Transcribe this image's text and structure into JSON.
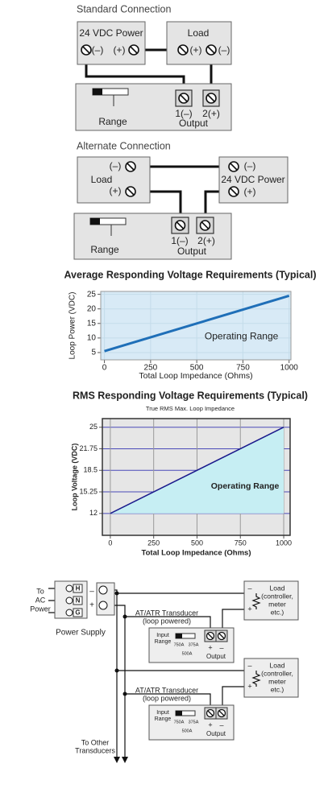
{
  "standard_connection": {
    "title": "Standard Connection",
    "power": {
      "label": "24 VDC Power",
      "minus": "(–)",
      "plus": "(+)"
    },
    "load": {
      "label": "Load",
      "plus": "(+)",
      "minus": "(–)"
    },
    "device": {
      "range": "Range",
      "terminal_1": "1(–)",
      "terminal_2": "2(+)",
      "output": "Output"
    }
  },
  "alternate_connection": {
    "title": "Alternate Connection",
    "load": {
      "label": "Load",
      "minus": "(–)",
      "plus": "(+)"
    },
    "power": {
      "label": "24 VDC Power",
      "minus": "(–)",
      "plus": "(+)"
    },
    "device": {
      "range": "Range",
      "terminal_1": "1(–)",
      "terminal_2": "2(+)",
      "output": "Output"
    }
  },
  "chart_data": [
    {
      "type": "line",
      "title": "Average Responding Voltage Requirements (Typical)",
      "x_label": "Total Loop Impedance (Ohms)",
      "y_label": "Loop Power (VDC)",
      "annotation": "Operating Range",
      "x": [
        0,
        1000
      ],
      "series": [
        {
          "color": "#1f6fb8",
          "values": [
            5.5,
            24.5
          ]
        }
      ],
      "xlim": [
        -20,
        1010
      ],
      "xticks": [
        0,
        250,
        500,
        750,
        1000
      ],
      "ylim": [
        2.5,
        26
      ],
      "yticks": [
        5,
        10,
        15,
        20,
        25
      ],
      "grid": true,
      "grid_color": "#c4dcea",
      "plot_background": "#d8eaf6"
    },
    {
      "type": "line",
      "title": "RMS Responding Voltage Requirements (Typical)",
      "subtitle": "True RMS Max. Loop Impedance",
      "x_label": "Total Loop Impedance (Ohms)",
      "y_label": "Loop Voltage (VDC)",
      "annotation": "Operating Range",
      "x": [
        0,
        1000
      ],
      "series": [
        {
          "color": "#1a1a8c",
          "values": [
            12,
            25
          ]
        }
      ],
      "xlim": [
        -46,
        1037
      ],
      "xticks": [
        0,
        250,
        500,
        750,
        1000
      ],
      "ylim": [
        8.7,
        26.3
      ],
      "yticks": [
        12,
        15.25,
        18.5,
        21.75,
        25
      ],
      "grid": true,
      "grid_color": "#4a4ab8",
      "plot_background": "#e6e6e6",
      "area_color": "#c6eef3"
    }
  ],
  "wiring_diagram": {
    "source_label": [
      "To",
      "AC",
      "Power"
    ],
    "power_supply": {
      "label": "Power Supply",
      "terminals": [
        "H",
        "N",
        "G"
      ]
    },
    "bus_terminals": [
      "–",
      "+"
    ],
    "loads": [
      {
        "minus": "–",
        "label": [
          "Load",
          "(controller,",
          "meter",
          "etc.)"
        ],
        "plus": "+"
      },
      {
        "minus": "–",
        "label": [
          "Load",
          "(controller,",
          "meter",
          "etc.)"
        ],
        "plus": "+"
      }
    ],
    "transducers": [
      {
        "title": [
          "AT/ATR Transducer",
          "(loop powered)"
        ],
        "input_label": [
          "Input",
          "Range"
        ],
        "range_options": [
          "750A",
          "375A",
          "500A"
        ],
        "output_plus": "+",
        "output_minus": "–",
        "output": "Output"
      },
      {
        "title": [
          "AT/ATR Transducer",
          "(loop powered)"
        ],
        "input_label": [
          "Input",
          "Range"
        ],
        "range_options": [
          "750A",
          "375A",
          "500A"
        ],
        "output_plus": "+",
        "output_minus": "–",
        "output": "Output"
      }
    ],
    "continuation": [
      "To Other",
      "Transducers"
    ]
  }
}
